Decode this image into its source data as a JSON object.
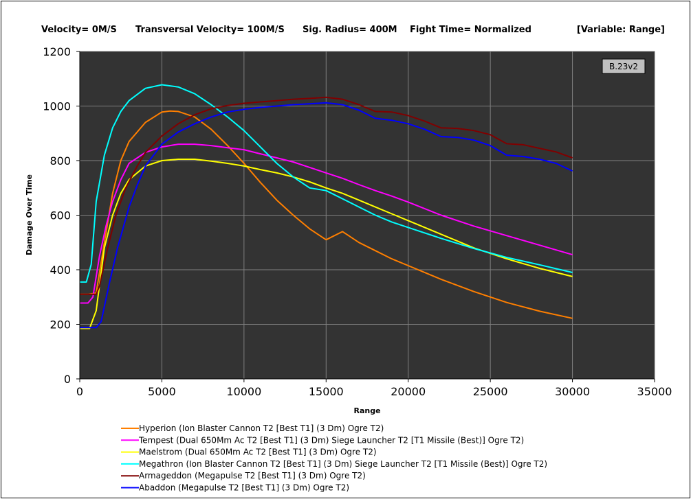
{
  "header": {
    "velocity": "Velocity= 0M/S",
    "transversal": "Transversal Velocity= 100M/S",
    "sig_radius": "Sig. Radius= 400M",
    "fight_time": "Fight Time= Normalized",
    "variable": "[Variable: Range]"
  },
  "badge": "B.23v2",
  "chart_data": {
    "type": "line",
    "xlabel": "Range",
    "ylabel": "Damage Over Time",
    "xlim": [
      0,
      35000
    ],
    "ylim": [
      0,
      1200
    ],
    "xticks": [
      0,
      5000,
      10000,
      15000,
      20000,
      25000,
      30000,
      35000
    ],
    "yticks": [
      0,
      200,
      400,
      600,
      800,
      1000,
      1200
    ],
    "grid": true,
    "legend_position": "bottom",
    "series": [
      {
        "name": "Hyperion (Ion Blaster Cannon T2 [Best T1] (3 Dm) Ogre T2)",
        "color": "#ff7f00",
        "points": [
          [
            0,
            310
          ],
          [
            500,
            310
          ],
          [
            1000,
            315
          ],
          [
            1500,
            500
          ],
          [
            2000,
            680
          ],
          [
            2500,
            800
          ],
          [
            3000,
            870
          ],
          [
            4000,
            940
          ],
          [
            5000,
            978
          ],
          [
            5500,
            982
          ],
          [
            6000,
            980
          ],
          [
            7000,
            960
          ],
          [
            8000,
            915
          ],
          [
            9000,
            855
          ],
          [
            10000,
            790
          ],
          [
            11000,
            720
          ],
          [
            12000,
            655
          ],
          [
            13000,
            600
          ],
          [
            14000,
            550
          ],
          [
            15000,
            510
          ],
          [
            16000,
            540
          ],
          [
            17000,
            500
          ],
          [
            18000,
            470
          ],
          [
            19000,
            440
          ],
          [
            20000,
            415
          ],
          [
            22000,
            365
          ],
          [
            24000,
            320
          ],
          [
            26000,
            280
          ],
          [
            28000,
            248
          ],
          [
            30000,
            222
          ]
        ]
      },
      {
        "name": "Tempest (Dual 650Mm Ac T2 [Best T1] (3 Dm) Siege Launcher T2 [T1 Missile (Best)] Ogre T2)",
        "color": "#ff00ff",
        "points": [
          [
            0,
            278
          ],
          [
            500,
            278
          ],
          [
            800,
            300
          ],
          [
            1200,
            450
          ],
          [
            1600,
            560
          ],
          [
            2000,
            650
          ],
          [
            2500,
            730
          ],
          [
            3000,
            790
          ],
          [
            4000,
            830
          ],
          [
            5000,
            850
          ],
          [
            6000,
            860
          ],
          [
            7000,
            860
          ],
          [
            8000,
            855
          ],
          [
            9000,
            847
          ],
          [
            10000,
            840
          ],
          [
            11000,
            825
          ],
          [
            12000,
            810
          ],
          [
            13000,
            795
          ],
          [
            14000,
            775
          ],
          [
            15000,
            755
          ],
          [
            16000,
            735
          ],
          [
            17000,
            712
          ],
          [
            18000,
            690
          ],
          [
            19000,
            670
          ],
          [
            20000,
            648
          ],
          [
            22000,
            600
          ],
          [
            24000,
            560
          ],
          [
            26000,
            525
          ],
          [
            28000,
            490
          ],
          [
            30000,
            455
          ]
        ]
      },
      {
        "name": "Maelstrom (Dual 650Mm Ac T2 [Best T1] (3 Dm) Ogre T2)",
        "color": "#ffff00",
        "points": [
          [
            0,
            185
          ],
          [
            600,
            185
          ],
          [
            1000,
            250
          ],
          [
            1500,
            480
          ],
          [
            2000,
            600
          ],
          [
            2500,
            680
          ],
          [
            3000,
            730
          ],
          [
            4000,
            780
          ],
          [
            5000,
            800
          ],
          [
            6000,
            805
          ],
          [
            7000,
            805
          ],
          [
            8000,
            798
          ],
          [
            9000,
            790
          ],
          [
            10000,
            780
          ],
          [
            11000,
            767
          ],
          [
            12000,
            755
          ],
          [
            13000,
            740
          ],
          [
            14000,
            722
          ],
          [
            15000,
            700
          ],
          [
            16000,
            680
          ],
          [
            17000,
            655
          ],
          [
            18000,
            630
          ],
          [
            19000,
            605
          ],
          [
            20000,
            580
          ],
          [
            22000,
            530
          ],
          [
            24000,
            480
          ],
          [
            26000,
            440
          ],
          [
            28000,
            405
          ],
          [
            30000,
            375
          ]
        ]
      },
      {
        "name": "Megathron (Ion Blaster Cannon T2 [Best T1] (3 Dm) Siege Launcher T2 [T1 Missile (Best)] Ogre T2)",
        "color": "#00ffff",
        "points": [
          [
            0,
            355
          ],
          [
            400,
            355
          ],
          [
            700,
            420
          ],
          [
            1000,
            650
          ],
          [
            1500,
            820
          ],
          [
            2000,
            920
          ],
          [
            2500,
            980
          ],
          [
            3000,
            1020
          ],
          [
            4000,
            1065
          ],
          [
            5000,
            1078
          ],
          [
            6000,
            1070
          ],
          [
            7000,
            1045
          ],
          [
            8000,
            1005
          ],
          [
            9000,
            960
          ],
          [
            10000,
            910
          ],
          [
            11000,
            850
          ],
          [
            12000,
            790
          ],
          [
            13000,
            740
          ],
          [
            14000,
            700
          ],
          [
            15000,
            690
          ],
          [
            16000,
            660
          ],
          [
            17000,
            630
          ],
          [
            18000,
            600
          ],
          [
            19000,
            575
          ],
          [
            20000,
            555
          ],
          [
            22000,
            515
          ],
          [
            24000,
            478
          ],
          [
            26000,
            445
          ],
          [
            28000,
            418
          ],
          [
            30000,
            390
          ]
        ]
      },
      {
        "name": "Armageddon (Megapulse T2 [Best T1] (3 Dm) Ogre T2)",
        "color": "#800000",
        "points": [
          [
            0,
            310
          ],
          [
            1000,
            310
          ],
          [
            1200,
            340
          ],
          [
            1700,
            480
          ],
          [
            2200,
            600
          ],
          [
            2800,
            700
          ],
          [
            3500,
            780
          ],
          [
            4000,
            830
          ],
          [
            5000,
            890
          ],
          [
            6000,
            935
          ],
          [
            7000,
            968
          ],
          [
            8000,
            990
          ],
          [
            9000,
            1002
          ],
          [
            10000,
            1010
          ],
          [
            11000,
            1015
          ],
          [
            12000,
            1020
          ],
          [
            13000,
            1025
          ],
          [
            14000,
            1028
          ],
          [
            15000,
            1032
          ],
          [
            16000,
            1025
          ],
          [
            17000,
            1005
          ],
          [
            18000,
            980
          ],
          [
            19000,
            978
          ],
          [
            20000,
            965
          ],
          [
            21000,
            945
          ],
          [
            22000,
            920
          ],
          [
            23000,
            918
          ],
          [
            24000,
            910
          ],
          [
            25000,
            895
          ],
          [
            26000,
            862
          ],
          [
            27000,
            858
          ],
          [
            28000,
            845
          ],
          [
            29000,
            832
          ],
          [
            30000,
            810
          ]
        ]
      },
      {
        "name": "Abaddon (Megapulse T2 [Best T1] (3 Dm) Ogre T2)",
        "color": "#0000ff",
        "points": [
          [
            0,
            188
          ],
          [
            1000,
            188
          ],
          [
            1300,
            210
          ],
          [
            1800,
            350
          ],
          [
            2300,
            480
          ],
          [
            3000,
            630
          ],
          [
            3500,
            710
          ],
          [
            4000,
            780
          ],
          [
            5000,
            860
          ],
          [
            6000,
            905
          ],
          [
            7000,
            935
          ],
          [
            8000,
            960
          ],
          [
            9000,
            978
          ],
          [
            10000,
            988
          ],
          [
            11000,
            995
          ],
          [
            12000,
            1000
          ],
          [
            13000,
            1005
          ],
          [
            14000,
            1008
          ],
          [
            15000,
            1012
          ],
          [
            16000,
            1005
          ],
          [
            17000,
            985
          ],
          [
            18000,
            955
          ],
          [
            19000,
            948
          ],
          [
            20000,
            935
          ],
          [
            21000,
            915
          ],
          [
            22000,
            888
          ],
          [
            23000,
            885
          ],
          [
            24000,
            875
          ],
          [
            25000,
            855
          ],
          [
            26000,
            820
          ],
          [
            27000,
            815
          ],
          [
            28000,
            805
          ],
          [
            29000,
            790
          ],
          [
            30000,
            762
          ]
        ]
      }
    ]
  }
}
